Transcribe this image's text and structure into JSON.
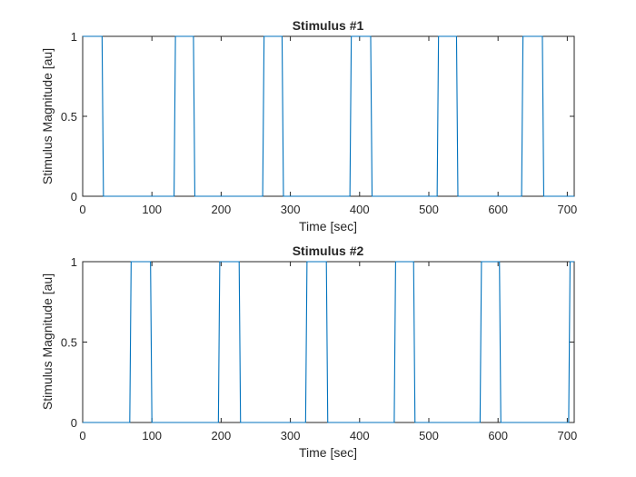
{
  "colors": {
    "series": "#0072BD",
    "axes": "#262626",
    "background": "#ffffff"
  },
  "chart_data": [
    {
      "type": "line",
      "title": "Stimulus #1",
      "xlabel": "Time [sec]",
      "ylabel": "Stimulus Magnitude [au]",
      "xlim": [
        0,
        710
      ],
      "ylim": [
        0,
        1
      ],
      "xticks": [
        0,
        100,
        200,
        300,
        400,
        500,
        600,
        700
      ],
      "yticks": [
        0,
        0.5,
        1
      ],
      "ytick_labels": [
        "0",
        "0.5",
        "1"
      ],
      "grid": false,
      "series": [
        {
          "x": [
            0,
            28,
            30,
            132,
            134,
            160,
            162,
            260,
            262,
            288,
            290,
            386,
            388,
            416,
            418,
            512,
            514,
            540,
            542,
            634,
            636,
            664,
            666,
            710
          ],
          "y": [
            1,
            1,
            0,
            0,
            1,
            1,
            0,
            0,
            1,
            1,
            0,
            0,
            1,
            1,
            0,
            0,
            1,
            1,
            0,
            0,
            1,
            1,
            0,
            0
          ]
        }
      ]
    },
    {
      "type": "line",
      "title": "Stimulus #2",
      "xlabel": "Time [sec]",
      "ylabel": "Stimulus Magnitude [au]",
      "xlim": [
        0,
        710
      ],
      "ylim": [
        0,
        1
      ],
      "xticks": [
        0,
        100,
        200,
        300,
        400,
        500,
        600,
        700
      ],
      "yticks": [
        0,
        0.5,
        1
      ],
      "ytick_labels": [
        "0",
        "0.5",
        "1"
      ],
      "grid": false,
      "series": [
        {
          "x": [
            0,
            68,
            70,
            98,
            100,
            196,
            198,
            226,
            228,
            322,
            324,
            352,
            354,
            450,
            452,
            478,
            480,
            574,
            576,
            602,
            604,
            702,
            704,
            710
          ],
          "y": [
            0,
            0,
            1,
            1,
            0,
            0,
            1,
            1,
            0,
            0,
            1,
            1,
            0,
            0,
            1,
            1,
            0,
            0,
            1,
            1,
            0,
            0,
            1,
            1
          ]
        }
      ]
    }
  ]
}
